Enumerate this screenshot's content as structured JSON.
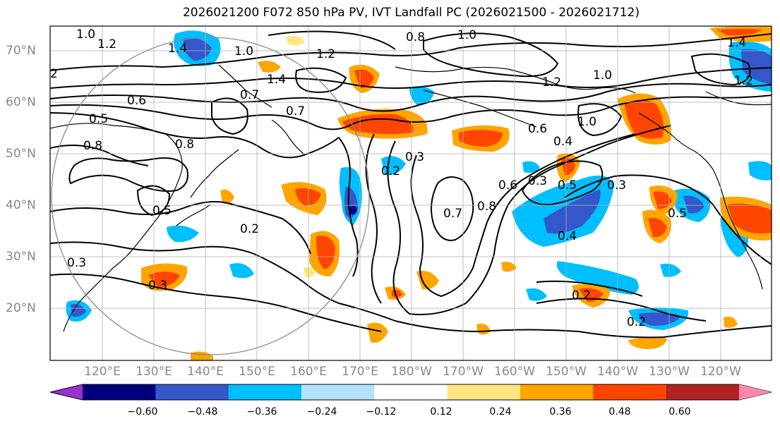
{
  "title": "2026021200 F072 850 hPa PV, IVT Landfall PC (2026021500 - 2026021712)",
  "map": {
    "lon_labels": [
      "120°E",
      "130°E",
      "140°E",
      "150°E",
      "160°E",
      "170°E",
      "180°W",
      "170°W",
      "160°W",
      "150°W",
      "140°W",
      "130°W",
      "120°W"
    ],
    "lat_labels": [
      "70°N",
      "60°N",
      "50°N",
      "40°N",
      "30°N",
      "20°N"
    ],
    "contour_labels": [
      "1.0",
      "1.2",
      "1.0",
      "0.8",
      "1.0",
      "1.2",
      "1.4",
      "1.2",
      "0.7",
      "0.6",
      "0.5",
      "0.8",
      "0.8",
      "0.7",
      "1.4",
      "1.2",
      "1.0",
      "0.6",
      "0.4",
      "1.0",
      "0.3",
      "0.2",
      "0.8",
      "0.7",
      "0.6",
      "0.3",
      "0.5",
      "0.5",
      "0.4",
      "0.5",
      "0.2",
      "0.3",
      "0.3",
      "0.2",
      "0.2",
      "0.3",
      "2",
      "1.4"
    ],
    "colors": {
      "land": "#ffffff",
      "contour": "#000000",
      "grid": "#b0b0b0",
      "axis_labels": "#888888"
    }
  },
  "colorbar": {
    "ticks": [
      "−0.60",
      "−0.48",
      "−0.36",
      "−0.24",
      "−0.12",
      "0.12",
      "0.24",
      "0.36",
      "0.48",
      "0.60"
    ],
    "colors": [
      "#9b30d0",
      "#00007f",
      "#3458cc",
      "#00bfff",
      "#b3e2fa",
      "#ffffff",
      "#ffe680",
      "#ffa500",
      "#ff4500",
      "#b22222",
      "#ff88aa"
    ]
  }
}
